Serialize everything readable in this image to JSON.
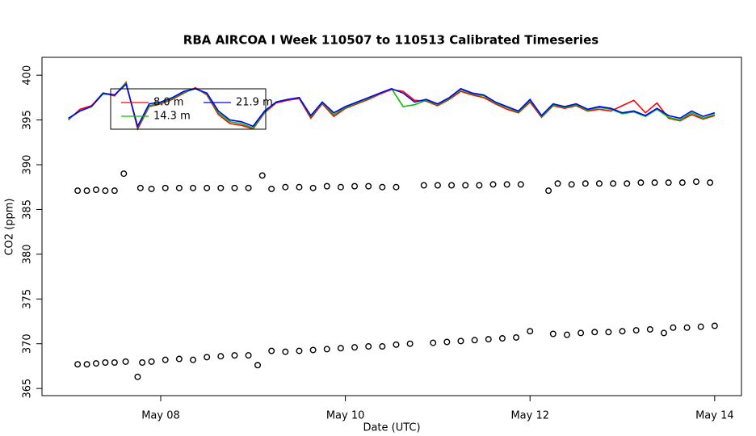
{
  "chart_data": {
    "type": "line",
    "title": "RBA AIRCOA I  Week 110507 to 110513  Calibrated Timeseries",
    "x_label": "Date (UTC)",
    "y_label": "CO2 (ppm)",
    "xlim": [
      6.714,
      14.29
    ],
    "ylim": [
      364.2,
      402
    ],
    "xticks": [
      {
        "value": 8,
        "label": "May 08"
      },
      {
        "value": 10,
        "label": "May 10"
      },
      {
        "value": 12,
        "label": "May 12"
      },
      {
        "value": 14,
        "label": "May 14"
      }
    ],
    "yticks": [
      365,
      370,
      375,
      380,
      385,
      390,
      395,
      400
    ],
    "legend": "top-left",
    "x": [
      7.0,
      7.125,
      7.25,
      7.375,
      7.5,
      7.625,
      7.75,
      7.875,
      8.0,
      8.125,
      8.25,
      8.375,
      8.5,
      8.625,
      8.75,
      8.875,
      9.0,
      9.125,
      9.25,
      9.375,
      9.5,
      9.625,
      9.75,
      9.875,
      10.0,
      10.125,
      10.25,
      10.375,
      10.5,
      10.625,
      10.75,
      10.875,
      11.0,
      11.125,
      11.25,
      11.375,
      11.5,
      11.625,
      11.75,
      11.875,
      12.0,
      12.125,
      12.25,
      12.375,
      12.5,
      12.625,
      12.75,
      12.875,
      13.0,
      13.125,
      13.25,
      13.375,
      13.5,
      13.625,
      13.75,
      13.875,
      14.0
    ],
    "series": [
      {
        "name": "8.0 m",
        "color": "#ff0000",
        "values": [
          395.0,
          396.2,
          396.6,
          398.0,
          397.7,
          399.2,
          394.0,
          396.5,
          396.8,
          397.3,
          398.0,
          398.6,
          397.8,
          395.6,
          394.6,
          394.4,
          394.0,
          395.8,
          396.9,
          397.2,
          397.4,
          395.2,
          396.8,
          395.4,
          396.3,
          396.8,
          397.3,
          397.9,
          398.4,
          398.2,
          397.2,
          397.1,
          396.6,
          397.3,
          398.2,
          397.8,
          397.5,
          396.8,
          396.2,
          395.8,
          397.0,
          395.3,
          396.6,
          396.3,
          396.6,
          396.0,
          396.2,
          396.0,
          396.6,
          397.2,
          395.8,
          396.9,
          395.2,
          394.9,
          395.6,
          395.1,
          395.5
        ]
      },
      {
        "name": "14.3 m",
        "color": "#00c000",
        "values": [
          395.1,
          396.0,
          396.5,
          397.9,
          397.8,
          399.1,
          394.2,
          396.6,
          396.9,
          397.4,
          398.1,
          398.5,
          397.9,
          395.8,
          394.8,
          394.6,
          394.1,
          395.9,
          397.0,
          397.3,
          397.5,
          395.4,
          396.9,
          395.6,
          396.4,
          396.9,
          397.4,
          398.0,
          398.5,
          396.5,
          396.7,
          397.2,
          396.7,
          397.4,
          398.4,
          397.9,
          397.7,
          396.9,
          396.4,
          395.9,
          397.2,
          395.4,
          396.7,
          396.4,
          396.7,
          396.1,
          396.4,
          396.2,
          395.7,
          395.9,
          395.4,
          396.2,
          395.3,
          395.0,
          395.8,
          395.2,
          395.6
        ]
      },
      {
        "name": "21.9 m",
        "color": "#0000ff",
        "values": [
          395.2,
          396.0,
          396.5,
          398.0,
          397.8,
          399.0,
          394.3,
          396.8,
          397.0,
          397.5,
          398.2,
          398.5,
          398.0,
          396.0,
          395.0,
          394.8,
          394.3,
          396.0,
          397.0,
          397.3,
          397.5,
          395.5,
          397.0,
          395.8,
          396.5,
          397.0,
          397.5,
          398.0,
          398.5,
          398.0,
          397.0,
          397.3,
          396.8,
          397.5,
          398.5,
          398.0,
          397.8,
          397.0,
          396.5,
          396.0,
          397.3,
          395.5,
          396.8,
          396.5,
          396.8,
          396.2,
          396.5,
          396.3,
          395.8,
          396.0,
          395.5,
          396.3,
          395.5,
          395.2,
          396.0,
          395.4,
          395.8
        ]
      },
      {
        "type": "scatter",
        "color": "#000000",
        "x": [
          7.1,
          7.2,
          7.3,
          7.4,
          7.5,
          7.6,
          7.78,
          7.9,
          8.05,
          8.2,
          8.35,
          8.5,
          8.65,
          8.8,
          8.95,
          9.1,
          9.2,
          9.35,
          9.5,
          9.65,
          9.8,
          9.95,
          10.1,
          10.25,
          10.4,
          10.55,
          10.85,
          11.0,
          11.15,
          11.3,
          11.45,
          11.6,
          11.75,
          11.9,
          12.2,
          12.3,
          12.45,
          12.6,
          12.75,
          12.9,
          13.05,
          13.2,
          13.35,
          13.5,
          13.65,
          13.8,
          13.95
        ],
        "values": [
          387.1,
          387.1,
          387.2,
          387.1,
          387.1,
          389.0,
          387.4,
          387.3,
          387.4,
          387.4,
          387.4,
          387.4,
          387.4,
          387.4,
          387.4,
          388.8,
          387.3,
          387.5,
          387.5,
          387.4,
          387.6,
          387.5,
          387.6,
          387.6,
          387.5,
          387.5,
          387.7,
          387.7,
          387.7,
          387.7,
          387.7,
          387.8,
          387.8,
          387.8,
          387.1,
          387.9,
          387.8,
          387.9,
          387.9,
          387.9,
          387.9,
          388.0,
          388.0,
          388.0,
          388.0,
          388.1,
          388.0
        ]
      },
      {
        "type": "scatter",
        "color": "#000000",
        "x": [
          7.1,
          7.2,
          7.3,
          7.4,
          7.5,
          7.62,
          7.75,
          7.8,
          7.9,
          8.05,
          8.2,
          8.35,
          8.5,
          8.65,
          8.8,
          8.95,
          9.05,
          9.2,
          9.35,
          9.5,
          9.65,
          9.8,
          9.95,
          10.1,
          10.25,
          10.4,
          10.55,
          10.7,
          10.95,
          11.1,
          11.25,
          11.4,
          11.55,
          11.7,
          11.85,
          12.0,
          12.25,
          12.4,
          12.55,
          12.7,
          12.85,
          13.0,
          13.15,
          13.3,
          13.45,
          13.55,
          13.7,
          13.85,
          14.0
        ],
        "values": [
          367.7,
          367.7,
          367.8,
          367.9,
          367.9,
          368.0,
          366.3,
          367.9,
          368.0,
          368.2,
          368.3,
          368.2,
          368.5,
          368.6,
          368.7,
          368.7,
          367.6,
          369.2,
          369.1,
          369.2,
          369.3,
          369.4,
          369.5,
          369.6,
          369.7,
          369.7,
          369.9,
          370.0,
          370.1,
          370.2,
          370.3,
          370.4,
          370.5,
          370.6,
          370.7,
          371.4,
          371.1,
          371.0,
          371.2,
          371.3,
          371.3,
          371.4,
          371.5,
          371.6,
          371.2,
          371.8,
          371.8,
          371.9,
          372.0
        ]
      }
    ]
  }
}
